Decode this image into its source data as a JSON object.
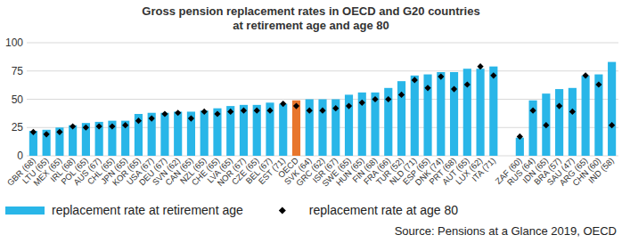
{
  "chart_data": {
    "type": "bar",
    "title": "Gross pension replacement rates in OECD and G20 countries",
    "subtitle": "at retirement age and age 80",
    "annotations": [
      "Source: Pensions at a Glance 2019, OECD"
    ],
    "categories": [
      "GBR (68)",
      "LTU (65)",
      "MEX (65)",
      "IRL (68)",
      "POL (65)",
      "AUS (67)",
      "CHL (65)",
      "JPN (65)",
      "KOR (65)",
      "USA (67)",
      "DEU (67)",
      "SVN (62)",
      "CAN (65)",
      "NZL (65)",
      "CHE (65)",
      "LVA (65)",
      "NOR (67)",
      "CZE (65)",
      "BEL (67)",
      "EST (71)",
      "OECD",
      "SVK (64)",
      "GRC (62)",
      "ISR (67)",
      "SWE (65)",
      "HUN (65)",
      "FIN (68)",
      "FRA (66)",
      "TUR (52)",
      "NLD (71)",
      "ESP (65)",
      "DNK (74)",
      "PRT (68)",
      "AUT (65)",
      "LUX (62)",
      "ITA (71)",
      null,
      "ZAF (60)",
      "RUS (64)",
      "IDN (65)",
      "BRA (57)",
      "SAU (47)",
      "ARG (65)",
      "CHN (60)",
      "IND (58)"
    ],
    "series": [
      {
        "name": "replacement rate at retirement age",
        "type": "bar",
        "color": "#29b6e8",
        "colors": [
          "#29b6e8",
          "#29b6e8",
          "#29b6e8",
          "#29b6e8",
          "#29b6e8",
          "#29b6e8",
          "#29b6e8",
          "#29b6e8",
          "#29b6e8",
          "#29b6e8",
          "#29b6e8",
          "#29b6e8",
          "#29b6e8",
          "#29b6e8",
          "#29b6e8",
          "#29b6e8",
          "#29b6e8",
          "#29b6e8",
          "#29b6e8",
          "#29b6e8",
          "#e8762d",
          "#29b6e8",
          "#29b6e8",
          "#29b6e8",
          "#29b6e8",
          "#29b6e8",
          "#29b6e8",
          "#29b6e8",
          "#29b6e8",
          "#29b6e8",
          "#29b6e8",
          "#29b6e8",
          "#29b6e8",
          "#29b6e8",
          "#29b6e8",
          "#29b6e8",
          "#29b6e8",
          "#29b6e8",
          "#29b6e8",
          "#29b6e8",
          "#29b6e8",
          "#29b6e8",
          "#29b6e8",
          "#29b6e8",
          "#29b6e8"
        ],
        "values": [
          22,
          23,
          25,
          27,
          29,
          30,
          31,
          31,
          37,
          38,
          38,
          39,
          39,
          40,
          42,
          44,
          45,
          45,
          47,
          46,
          49,
          50,
          50,
          50,
          54,
          56,
          56,
          60,
          66,
          71,
          72,
          74,
          74,
          77,
          77,
          79,
          null,
          16,
          49,
          55,
          59,
          60,
          71,
          72,
          83
        ]
      },
      {
        "name": "replacement rate at age 80",
        "type": "scatter",
        "color": "#000000",
        "marker": "diamond",
        "values": [
          21,
          19,
          21,
          26,
          25,
          26,
          26,
          27,
          31,
          33,
          37,
          38,
          33,
          39,
          37,
          39,
          40,
          40,
          40,
          46,
          44,
          40,
          40,
          42,
          44,
          47,
          50,
          50,
          54,
          67,
          60,
          70,
          59,
          63,
          79,
          71,
          null,
          17,
          40,
          27,
          44,
          39,
          71,
          63,
          27
        ]
      }
    ],
    "ylim": [
      0,
      100
    ],
    "yticks": [
      0,
      25,
      50,
      75,
      100
    ],
    "grid": true,
    "legend": "bottom"
  }
}
